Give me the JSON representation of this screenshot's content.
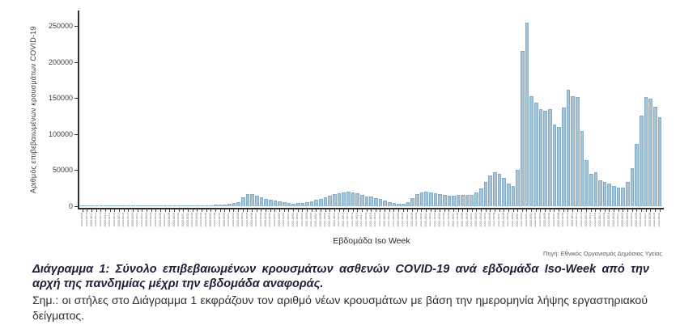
{
  "figure": {
    "source": "Πηγή: Εθνικός Οργανισμός Δημόσιας Υγείας",
    "bar_fill": "#a7c5da",
    "bar_border": "#85abc5",
    "axis_color": "#2f2f2f"
  },
  "caption": {
    "text": "Διάγραμμα 1: Σύνολο επιβεβαιωμένων κρουσμάτων ασθενών COVID-19 ανά εβδομάδα Iso-Week από την αρχή της πανδημίας μέχρι την εβδομάδα αναφοράς."
  },
  "note": {
    "text": "Σημ.:  οι στήλες στο Διάγραμμα 1 εκφράζουν τον αριθμό νέων κρουσμάτων με βάση την ημερομηνία λήψης εργαστηριακού δείγματος."
  },
  "chart_data": {
    "type": "bar",
    "title": "",
    "xlabel": "Εβδομάδα Iso Week",
    "ylabel": "Αριθμός επιβεβαιωμένων κρουσμάτων COVID-19",
    "ylim": [
      0,
      260000
    ],
    "yticks": [
      0,
      50000,
      100000,
      150000,
      200000,
      250000
    ],
    "grid": "dashed line at zero only",
    "legend": "none",
    "categories": [
      "2020-W09",
      "2020-W10",
      "2020-W11",
      "2020-W12",
      "2020-W13",
      "2020-W14",
      "2020-W15",
      "2020-W16",
      "2020-W17",
      "2020-W18",
      "2020-W19",
      "2020-W20",
      "2020-W21",
      "2020-W22",
      "2020-W23",
      "2020-W24",
      "2020-W25",
      "2020-W26",
      "2020-W27",
      "2020-W28",
      "2020-W29",
      "2020-W30",
      "2020-W31",
      "2020-W32",
      "2020-W33",
      "2020-W34",
      "2020-W35",
      "2020-W36",
      "2020-W37",
      "2020-W38",
      "2020-W39",
      "2020-W40",
      "2020-W41",
      "2020-W42",
      "2020-W43",
      "2020-W44",
      "2020-W45",
      "2020-W46",
      "2020-W47",
      "2020-W48",
      "2020-W49",
      "2020-W50",
      "2020-W51",
      "2020-W52",
      "2020-W53",
      "2021-W01",
      "2021-W02",
      "2021-W03",
      "2021-W04",
      "2021-W05",
      "2021-W06",
      "2021-W07",
      "2021-W08",
      "2021-W09",
      "2021-W10",
      "2021-W11",
      "2021-W12",
      "2021-W13",
      "2021-W14",
      "2021-W15",
      "2021-W16",
      "2021-W17",
      "2021-W18",
      "2021-W19",
      "2021-W20",
      "2021-W21",
      "2021-W22",
      "2021-W23",
      "2021-W24",
      "2021-W25",
      "2021-W26",
      "2021-W27",
      "2021-W28",
      "2021-W29",
      "2021-W30",
      "2021-W31",
      "2021-W32",
      "2021-W33",
      "2021-W34",
      "2021-W35",
      "2021-W36",
      "2021-W37",
      "2021-W38",
      "2021-W39",
      "2021-W40",
      "2021-W41",
      "2021-W42",
      "2021-W43",
      "2021-W44",
      "2021-W45",
      "2021-W46",
      "2021-W47",
      "2021-W48",
      "2021-W49",
      "2021-W50",
      "2021-W51",
      "2021-W52",
      "2022-W01",
      "2022-W02",
      "2022-W03",
      "2022-W04",
      "2022-W05",
      "2022-W06",
      "2022-W07",
      "2022-W08",
      "2022-W09",
      "2022-W10",
      "2022-W11",
      "2022-W12",
      "2022-W13",
      "2022-W14",
      "2022-W15",
      "2022-W16",
      "2022-W17",
      "2022-W18",
      "2022-W19",
      "2022-W20",
      "2022-W21",
      "2022-W22",
      "2022-W23",
      "2022-W24",
      "2022-W25",
      "2022-W26",
      "2022-W27",
      "2022-W28",
      "2022-W29",
      "2022-W30"
    ],
    "values": [
      45,
      150,
      320,
      480,
      430,
      380,
      300,
      180,
      120,
      90,
      80,
      95,
      85,
      70,
      110,
      180,
      240,
      290,
      340,
      420,
      620,
      950,
      1400,
      1550,
      1600,
      1500,
      1350,
      1300,
      1500,
      2000,
      2300,
      2600,
      3100,
      4300,
      5800,
      12500,
      16500,
      17200,
      14800,
      12200,
      10200,
      8600,
      7800,
      6500,
      5600,
      4200,
      3600,
      4100,
      4800,
      5900,
      6900,
      8600,
      10500,
      12600,
      14600,
      16500,
      18000,
      19200,
      20600,
      19600,
      18000,
      15200,
      13600,
      13000,
      11600,
      9600,
      7600,
      5600,
      4300,
      3300,
      2900,
      5600,
      11200,
      16600,
      19600,
      20600,
      19200,
      17800,
      17200,
      15800,
      14600,
      14200,
      15200,
      15600,
      15200,
      16200,
      19600,
      24200,
      33500,
      43000,
      47000,
      45000,
      39000,
      31000,
      28000,
      50000,
      215000,
      255000,
      153000,
      143000,
      134000,
      132000,
      134000,
      113000,
      110000,
      137000,
      161000,
      153000,
      151000,
      104000,
      64000,
      45000,
      47000,
      36000,
      33500,
      31500,
      28000,
      26000,
      26000,
      33500,
      52500,
      86500,
      125500,
      151000,
      149000,
      138000,
      123000
    ]
  }
}
